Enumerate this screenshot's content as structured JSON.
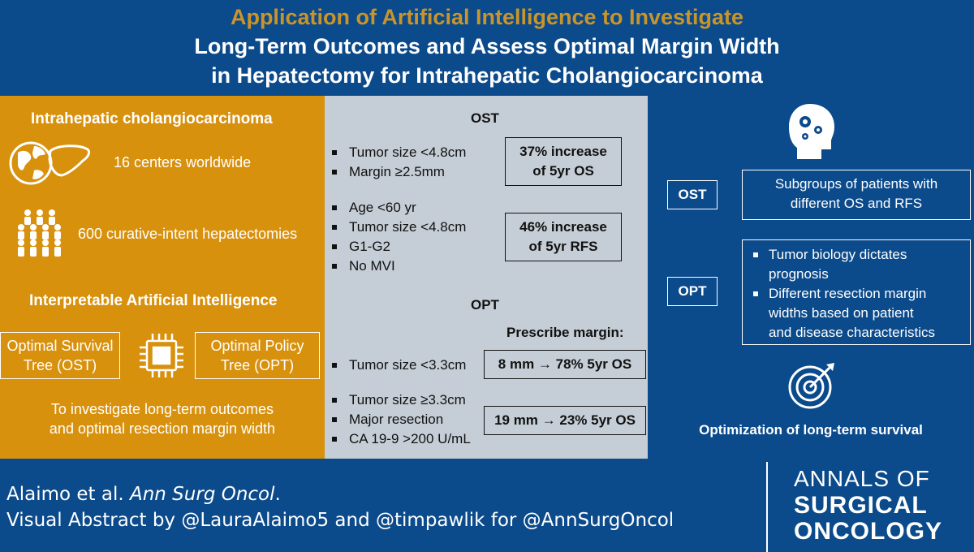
{
  "header": {
    "line1": "Application of Artificial Intelligence to Investigate",
    "line2": "Long-Term Outcomes and Assess Optimal Margin Width",
    "line3": "in Hepatectomy for Intrahepatic Cholangiocarcinoma"
  },
  "left": {
    "heading1": "Intrahepatic cholangiocarcinoma",
    "stat1": "16 centers worldwide",
    "stat2": "600 curative-intent hepatectomies",
    "heading2": "Interpretable Artificial Intelligence",
    "box_ost": [
      "Optimal Survival",
      "Tree (OST)"
    ],
    "box_opt": [
      "Optimal Policy",
      "Tree (OPT)"
    ],
    "purpose": [
      "To investigate long-term outcomes",
      "and optimal resection margin width"
    ],
    "icons": [
      "globe-icon",
      "liver-icon",
      "people-group-icon",
      "chip-icon"
    ]
  },
  "middle": {
    "ost_title": "OST",
    "ost_group1": [
      "Tumor size <4.8cm",
      "Margin ≥2.5mm"
    ],
    "ost_result1": [
      "37% increase",
      "of 5yr OS"
    ],
    "ost_group2": [
      "Age <60 yr",
      "Tumor size <4.8cm",
      "G1-G2",
      "No MVI"
    ],
    "ost_result2": [
      "46% increase",
      "of 5yr RFS"
    ],
    "opt_title": "OPT",
    "prescribe": "Prescribe margin:",
    "opt_group1": [
      "Tumor size <3.3cm"
    ],
    "opt_result1": "8 mm → 78% 5yr OS",
    "opt_group2": [
      "Tumor size ≥3.3cm",
      "Major resection",
      "CA 19-9 >200 U/mL"
    ],
    "opt_result2": "19 mm → 23% 5yr OS"
  },
  "right": {
    "ost_label": "OST",
    "ost_desc": [
      "Subgroups of patients with",
      "different OS and RFS"
    ],
    "opt_label": "OPT",
    "opt_bullets": [
      [
        "Tumor biology dictates",
        "prognosis"
      ],
      [
        "Different resection margin",
        "widths based on patient",
        "and disease characteristics"
      ]
    ],
    "bottom_caption": "Optimization of long-term survival",
    "icons": [
      "brain-gears-icon",
      "target-icon"
    ]
  },
  "footer": {
    "citation_authors": "Alaimo et al. ",
    "citation_journal": "Ann Surg Oncol",
    "citation_end": ".",
    "credit": "Visual Abstract by @LauraAlaimo5 and @timpawlik for @AnnSurgOncol",
    "logo_lines": [
      "ANNALS OF",
      "SURGICAL",
      "ONCOLOGY"
    ]
  },
  "colors": {
    "navy": "#0b4a8b",
    "gold": "#d8910d",
    "gold_title": "#c9952b",
    "gray": "#c5ced6"
  }
}
